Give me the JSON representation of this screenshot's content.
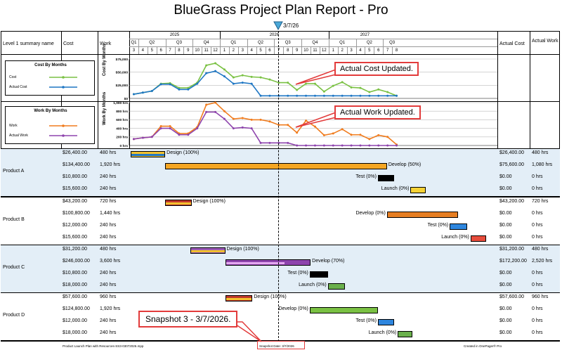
{
  "title": "BlueGrass Project Plan Report - Pro",
  "snapshot_marker": "3/7/26",
  "columns": {
    "summary": "Level 1 summary name",
    "cost": "Cost",
    "work": "Work",
    "actual_cost": "Actual Cost",
    "actual_work": "Actual Work"
  },
  "years": [
    "2025",
    "2026",
    "2027"
  ],
  "quarters": [
    "Q1",
    "Q2",
    "Q3",
    "Q4",
    "Q1",
    "Q2",
    "Q3",
    "Q4",
    "Q1",
    "Q2",
    "Q3"
  ],
  "months": [
    "3",
    "4",
    "5",
    "6",
    "7",
    "8",
    "9",
    "10",
    "11",
    "12",
    "1",
    "2",
    "3",
    "4",
    "5",
    "6",
    "7",
    "8",
    "9",
    "10",
    "11",
    "12",
    "1",
    "2",
    "3",
    "4",
    "5",
    "6",
    "7",
    "8"
  ],
  "cost_chart": {
    "title": "Cost By Months",
    "legend": [
      "Cost",
      "Actual Cost"
    ],
    "y_ticks": [
      "$75,000",
      "$50,000",
      "$25,000",
      "$0"
    ],
    "ymax": 75000,
    "cost": [
      8000,
      11000,
      14000,
      28000,
      29000,
      20000,
      20000,
      30000,
      63000,
      67000,
      55000,
      40000,
      44000,
      41000,
      40000,
      36000,
      30000,
      30000,
      16000,
      28000,
      28000,
      13000,
      24000,
      31000,
      21000,
      20000,
      12000,
      17000,
      12000,
      5000
    ],
    "actual": [
      8000,
      11000,
      14000,
      27000,
      27000,
      17000,
      17000,
      28000,
      48000,
      52000,
      42000,
      28000,
      30000,
      28000,
      5000,
      5000,
      5000,
      5000,
      5000,
      5000,
      5000,
      5000,
      5000,
      5000,
      5000,
      5000,
      5000,
      5000,
      5000,
      5000
    ]
  },
  "work_chart": {
    "title": "Work By Months",
    "legend": [
      "Work",
      "Actual Work"
    ],
    "y_ticks": [
      "1,000 hrs",
      "800 hrs",
      "600 hrs",
      "400 hrs",
      "200 hrs",
      "0 hrs"
    ],
    "ymax": 1000,
    "work": [
      150,
      180,
      200,
      450,
      450,
      280,
      280,
      430,
      950,
      1000,
      800,
      620,
      640,
      600,
      600,
      560,
      480,
      480,
      300,
      580,
      440,
      240,
      280,
      380,
      250,
      250,
      150,
      240,
      200,
      20
    ],
    "actual": [
      150,
      180,
      200,
      400,
      400,
      250,
      250,
      400,
      780,
      780,
      620,
      400,
      420,
      400,
      60,
      60,
      60,
      60,
      0,
      0,
      0,
      0,
      0,
      0,
      0,
      0,
      0,
      0,
      0,
      0
    ]
  },
  "callouts": {
    "cost": "Actual Cost Updated.",
    "work": "Actual Work Updated.",
    "snapshot": "Snapshot 3 - 3/7/2026."
  },
  "products": [
    {
      "name": "Product A",
      "rows": [
        {
          "cost": "$26,400.00",
          "work": "480 hrs",
          "task": "Design (100%)",
          "actual_cost": "$26,400.00",
          "actual_work": "480 hrs"
        },
        {
          "cost": "$134,400.00",
          "work": "1,920 hrs",
          "task": "Develop (50%)",
          "actual_cost": "$75,600.00",
          "actual_work": "1,080 hrs"
        },
        {
          "cost": "$10,800.00",
          "work": "240 hrs",
          "task": "Test (0%)",
          "actual_cost": "$0.00",
          "actual_work": "0 hrs"
        },
        {
          "cost": "$15,600.00",
          "work": "240 hrs",
          "task": "Launch (0%)",
          "actual_cost": "$0.00",
          "actual_work": "0 hrs"
        }
      ]
    },
    {
      "name": "Product B",
      "rows": [
        {
          "cost": "$43,200.00",
          "work": "720 hrs",
          "task": "Design (100%)",
          "actual_cost": "$43,200.00",
          "actual_work": "720 hrs"
        },
        {
          "cost": "$100,800.00",
          "work": "1,440 hrs",
          "task": "Develop (0%)",
          "actual_cost": "$0.00",
          "actual_work": "0 hrs"
        },
        {
          "cost": "$12,000.00",
          "work": "240 hrs",
          "task": "Test (0%)",
          "actual_cost": "$0.00",
          "actual_work": "0 hrs"
        },
        {
          "cost": "$15,600.00",
          "work": "240 hrs",
          "task": "Launch (0%)",
          "actual_cost": "$0.00",
          "actual_work": "0 hrs"
        }
      ]
    },
    {
      "name": "Product C",
      "rows": [
        {
          "cost": "$31,200.00",
          "work": "480 hrs",
          "task": "Design (100%)",
          "actual_cost": "$31,200.00",
          "actual_work": "480 hrs"
        },
        {
          "cost": "$246,000.00",
          "work": "3,600 hrs",
          "task": "Develop (70%)",
          "actual_cost": "$172,200.00",
          "actual_work": "2,520 hrs"
        },
        {
          "cost": "$10,800.00",
          "work": "240 hrs",
          "task": "Test (0%)",
          "actual_cost": "$0.00",
          "actual_work": "0 hrs"
        },
        {
          "cost": "$18,000.00",
          "work": "240 hrs",
          "task": "Launch (0%)",
          "actual_cost": "$0.00",
          "actual_work": "0 hrs"
        }
      ]
    },
    {
      "name": "Product D",
      "rows": [
        {
          "cost": "$57,600.00",
          "work": "960 hrs",
          "task": "Design (100%)",
          "actual_cost": "$57,600.00",
          "actual_work": "960 hrs"
        },
        {
          "cost": "$124,800.00",
          "work": "1,920 hrs",
          "task": "Develop (0%)",
          "actual_cost": "$0.00",
          "actual_work": "0 hrs"
        },
        {
          "cost": "$12,000.00",
          "work": "240 hrs",
          "task": "Test (0%)",
          "actual_cost": "$0.00",
          "actual_work": "0 hrs"
        },
        {
          "cost": "$18,000.00",
          "work": "240 hrs",
          "task": "Launch (0%)",
          "actual_cost": "$0.00",
          "actual_work": "0 hrs"
        }
      ]
    }
  ],
  "footer": {
    "left": "Product Launch Plan with Resources-SS3-03072026.mpp",
    "center": "Snapshot Date: 3/7/2026",
    "right": "Created in OnePager® Pro"
  },
  "colors": {
    "cost_line": "#7ac143",
    "actual_cost_line": "#1f77c4",
    "work_line": "#f07c1e",
    "actual_work_line": "#8e44ad",
    "callout_border": "#e23b3b",
    "band": "#e3eef7"
  }
}
